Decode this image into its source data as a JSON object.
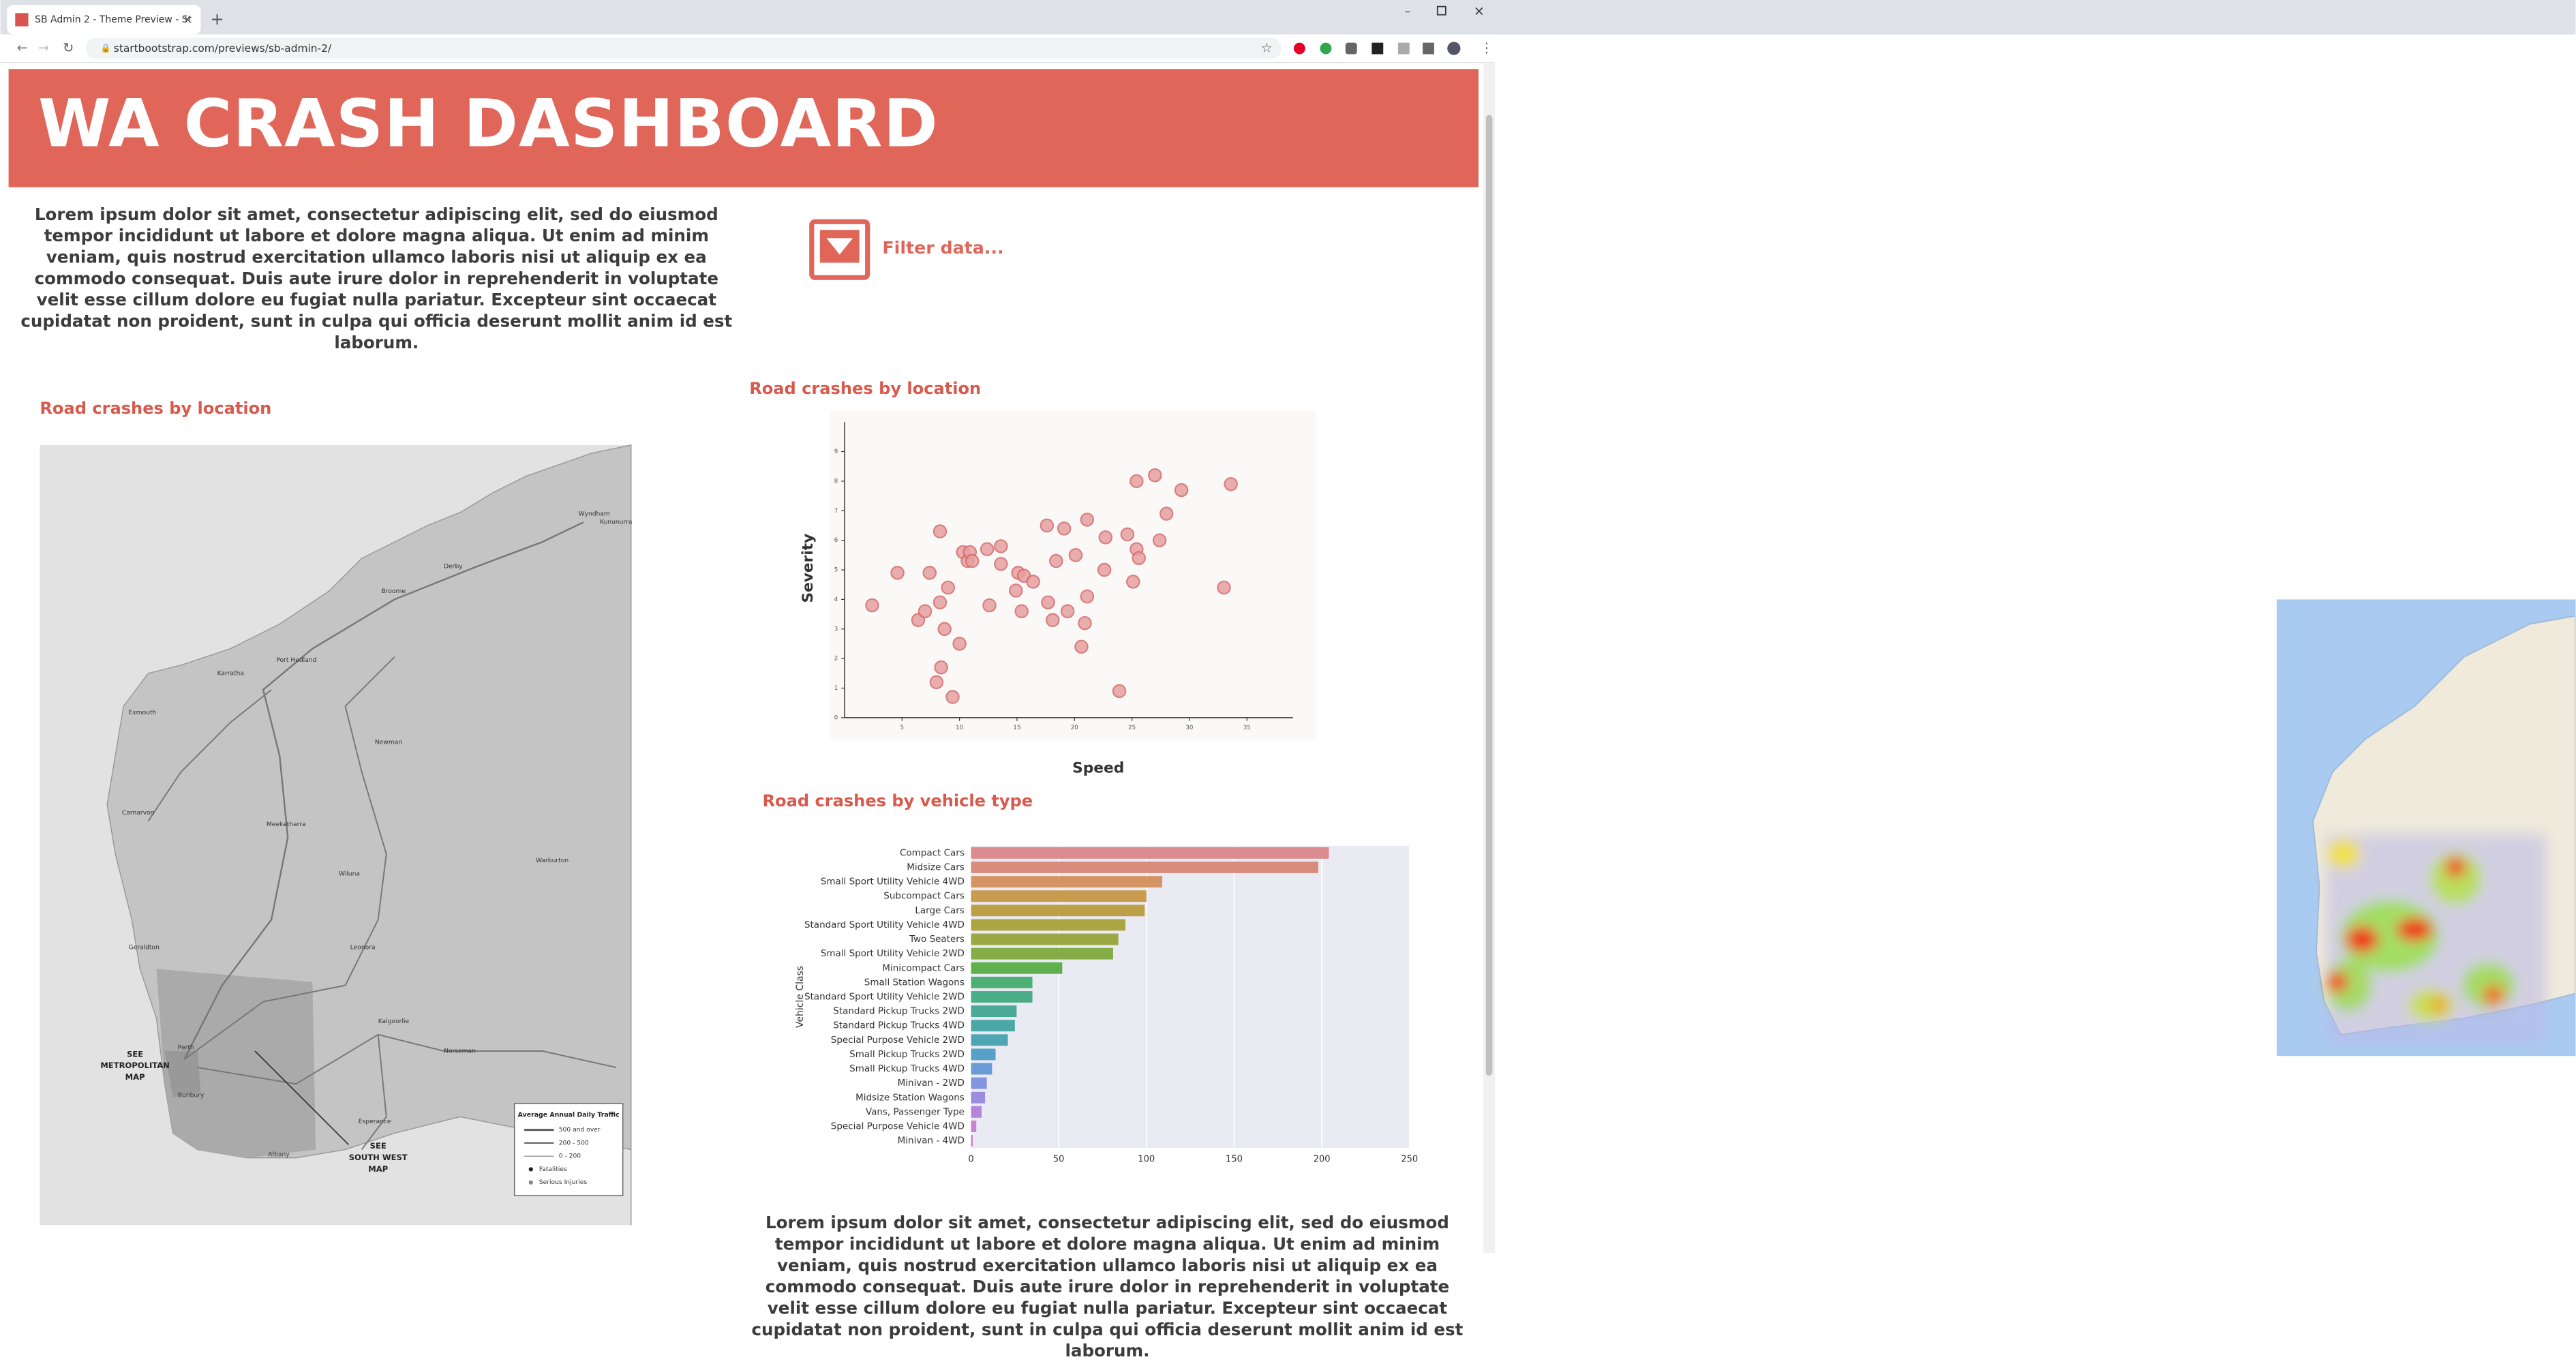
{
  "browser": {
    "tab_title": "SB Admin 2 - Theme Preview - St",
    "url": "startbootstrap.com/previews/sb-admin-2/"
  },
  "header": {
    "title": "WA CRASH DASHBOARD"
  },
  "intro": {
    "text": "Lorem ipsum dolor sit amet, consectetur adipiscing elit, sed do eiusmod tempor incididunt ut labore et dolore magna aliqua. Ut enim ad minim veniam, quis nostrud exercitation ullamco laboris nisi ut aliquip ex ea commodo consequat. Duis aute irure dolor in reprehenderit in voluptate velit esse cillum dolore eu fugiat nulla pariatur. Excepteur sint occaecat cupidatat non proident, sunt in culpa qui officia deserunt mollit anim id est laborum."
  },
  "filter": {
    "label": "Filter data..."
  },
  "map_panel": {
    "title": "Road crashes by location",
    "places": [
      "Wyndham",
      "Kununurra",
      "Broome",
      "Derby",
      "Port Hedland",
      "Karratha",
      "Exmouth",
      "Carnarvon",
      "Newman",
      "Meekatharra",
      "Geraldton",
      "Wiluna",
      "Leonora",
      "Warburton",
      "Kalgoorlie",
      "Norseman",
      "Esperance",
      "Albany",
      "Bunbury",
      "Perth"
    ],
    "callouts": [
      "SEE",
      "METROPOLITAN",
      "MAP",
      "SEE",
      "SOUTH WEST",
      "MAP"
    ],
    "legend": {
      "title": "Average Annual Daily Traffic",
      "items": [
        "500 and over",
        "200 - 500",
        "0 - 200",
        "Fatalities",
        "Serious Injuries"
      ]
    }
  },
  "chart_data": [
    {
      "type": "scatter",
      "title": "Road crashes by location",
      "x_label": "Speed",
      "y_label": "Severity",
      "color": "#e8a0a0",
      "x": [
        2.4,
        4.6,
        6.4,
        7.0,
        7.4,
        8.3,
        8.3,
        8.7,
        9.0,
        8.4,
        8.0,
        9.4,
        10.0,
        10.3,
        10.7,
        10.9,
        11.1,
        12.4,
        13.6,
        12.6,
        13.6,
        14.9,
        15.1,
        15.6,
        15.4,
        16.4,
        17.6,
        17.7,
        18.1,
        18.4,
        19.1,
        19.4,
        20.1,
        20.6,
        20.9,
        21.1,
        21.1,
        22.6,
        22.7,
        23.9,
        24.6,
        25.1,
        25.4,
        25.6,
        25.4,
        27.0,
        27.4,
        28.0,
        29.3,
        33.0,
        33.6
      ],
      "values": [
        3.8,
        4.9,
        3.3,
        3.6,
        4.9,
        6.3,
        3.9,
        3.0,
        4.4,
        1.7,
        1.2,
        0.7,
        2.5,
        5.6,
        5.3,
        5.6,
        5.3,
        5.7,
        5.8,
        3.8,
        5.2,
        4.3,
        4.9,
        4.8,
        3.6,
        4.6,
        6.5,
        3.9,
        3.3,
        5.3,
        6.4,
        3.6,
        5.5,
        2.4,
        3.2,
        6.7,
        4.1,
        5.0,
        6.1,
        0.9,
        6.2,
        4.6,
        5.7,
        5.4,
        8.0,
        8.2,
        6.0,
        6.9,
        7.7,
        4.4,
        7.9
      ],
      "xlim": [
        0,
        39
      ],
      "ylim": [
        0,
        10
      ],
      "xticks": [
        5,
        10,
        15,
        20,
        25,
        30,
        35
      ],
      "yticks": [
        0,
        1,
        2,
        3,
        4,
        5,
        6,
        7,
        8,
        9
      ]
    },
    {
      "type": "bar",
      "orientation": "horizontal",
      "title": "Road crashes by vehicle type",
      "y_label": "Vehicle Class",
      "categories": [
        "Compact Cars",
        "Midsize Cars",
        "Small Sport Utility Vehicle 4WD",
        "Subcompact Cars",
        "Large Cars",
        "Standard Sport Utility Vehicle 4WD",
        "Two Seaters",
        "Small Sport Utility Vehicle 2WD",
        "Minicompact Cars",
        "Small Station Wagons",
        "Standard Sport Utility Vehicle 2WD",
        "Standard Pickup Trucks 2WD",
        "Standard Pickup Trucks 4WD",
        "Special Purpose Vehicle 2WD",
        "Small Pickup Trucks 2WD",
        "Small Pickup Trucks 4WD",
        "Minivan - 2WD",
        "Midsize Station Wagons",
        "Vans, Passenger Type",
        "Special Purpose Vehicle 4WD",
        "Minivan - 4WD"
      ],
      "values": [
        204,
        198,
        109,
        100,
        99,
        88,
        84,
        81,
        52,
        35,
        35,
        26,
        25,
        21,
        14,
        12,
        9,
        8,
        6,
        3,
        1
      ],
      "colors": [
        "#dc8b8e",
        "#d98c7c",
        "#d49463",
        "#c99b4e",
        "#bca048",
        "#aca544",
        "#9aa844",
        "#84ac47",
        "#60b050",
        "#4daf73",
        "#4aad88",
        "#4baa98",
        "#4ca8a6",
        "#4ea5b4",
        "#57a1c6",
        "#6a9bd6",
        "#8494de",
        "#9c8cde",
        "#b386dc",
        "#c882d2",
        "#d480c0"
      ],
      "xlim": [
        0,
        250
      ],
      "xticks": [
        0,
        50,
        100,
        150,
        200,
        250
      ],
      "grid": true
    }
  ]
}
